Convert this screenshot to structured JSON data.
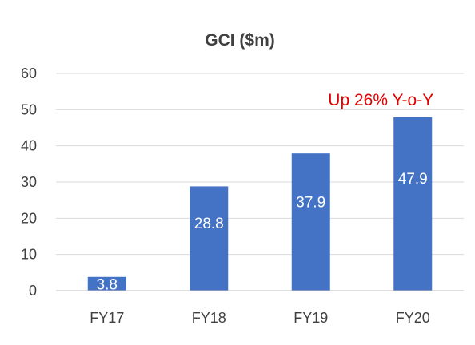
{
  "chart_data": {
    "type": "bar",
    "title": "GCI ($m)",
    "categories": [
      "FY17",
      "FY18",
      "FY19",
      "FY20"
    ],
    "values": [
      3.8,
      28.8,
      37.9,
      47.9
    ],
    "data_labels": [
      "3.8",
      "28.8",
      "37.9",
      "47.9"
    ],
    "ylim": [
      0,
      60
    ],
    "yticks": [
      0,
      10,
      20,
      30,
      40,
      50,
      60
    ],
    "grid": true,
    "legend": "none",
    "bar_color": "#4472c4",
    "annotation": {
      "text": "Up 26% Y-o-Y",
      "color": "#e00000",
      "category": "FY20"
    }
  }
}
